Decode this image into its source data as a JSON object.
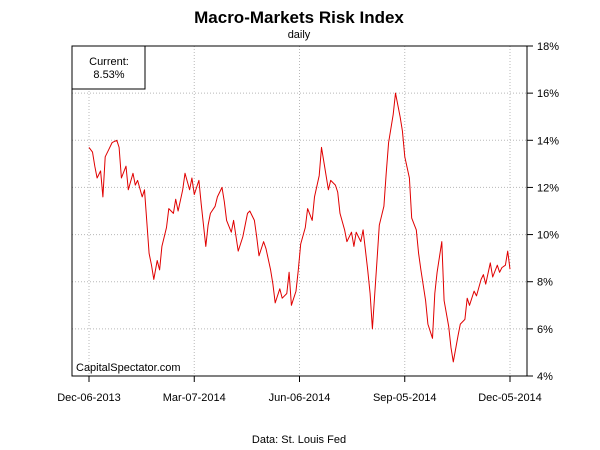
{
  "chart_data": {
    "type": "line",
    "title": "Macro-Markets Risk Index",
    "subtitle": "daily",
    "caption": "Data: St. Louis Fed",
    "watermark": "CapitalSpectator.com",
    "current_label": "Current:",
    "current_value": "8.53%",
    "y_unit": "%",
    "ylim": [
      4,
      18
    ],
    "y_ticks": [
      4,
      6,
      8,
      10,
      12,
      14,
      16,
      18
    ],
    "y_tick_labels": [
      "4%",
      "6%",
      "8%",
      "10%",
      "12%",
      "14%",
      "16%",
      "18%"
    ],
    "x_ticks": [
      "2013-12-06",
      "2014-03-07",
      "2014-06-06",
      "2014-09-05",
      "2014-12-05"
    ],
    "x_tick_labels": [
      "Dec-06-2013",
      "Mar-07-2014",
      "Jun-06-2014",
      "Sep-05-2014",
      "Dec-05-2014"
    ],
    "grid": true,
    "line_color": "#e00000",
    "series": [
      {
        "points": [
          [
            "2013-12-06",
            13.7
          ],
          [
            "2013-12-09",
            13.5
          ],
          [
            "2013-12-11",
            12.9
          ],
          [
            "2013-12-13",
            12.4
          ],
          [
            "2013-12-16",
            12.7
          ],
          [
            "2013-12-18",
            11.6
          ],
          [
            "2013-12-20",
            13.3
          ],
          [
            "2013-12-23",
            13.6
          ],
          [
            "2013-12-26",
            13.9
          ],
          [
            "2013-12-30",
            14.0
          ],
          [
            "2014-01-01",
            13.7
          ],
          [
            "2014-01-03",
            12.4
          ],
          [
            "2014-01-07",
            12.9
          ],
          [
            "2014-01-09",
            11.9
          ],
          [
            "2014-01-13",
            12.6
          ],
          [
            "2014-01-15",
            12.1
          ],
          [
            "2014-01-17",
            12.3
          ],
          [
            "2014-01-21",
            11.6
          ],
          [
            "2014-01-23",
            11.9
          ],
          [
            "2014-01-27",
            9.2
          ],
          [
            "2014-01-29",
            8.7
          ],
          [
            "2014-01-31",
            8.1
          ],
          [
            "2014-02-03",
            8.9
          ],
          [
            "2014-02-05",
            8.5
          ],
          [
            "2014-02-07",
            9.5
          ],
          [
            "2014-02-11",
            10.3
          ],
          [
            "2014-02-13",
            11.1
          ],
          [
            "2014-02-17",
            10.9
          ],
          [
            "2014-02-19",
            11.5
          ],
          [
            "2014-02-21",
            11.0
          ],
          [
            "2014-02-25",
            11.9
          ],
          [
            "2014-02-27",
            12.6
          ],
          [
            "2014-03-03",
            11.9
          ],
          [
            "2014-03-05",
            12.4
          ],
          [
            "2014-03-07",
            11.7
          ],
          [
            "2014-03-11",
            12.3
          ],
          [
            "2014-03-13",
            11.3
          ],
          [
            "2014-03-17",
            9.5
          ],
          [
            "2014-03-19",
            10.4
          ],
          [
            "2014-03-21",
            10.9
          ],
          [
            "2014-03-25",
            11.2
          ],
          [
            "2014-03-27",
            11.6
          ],
          [
            "2014-03-31",
            12.0
          ],
          [
            "2014-04-02",
            11.4
          ],
          [
            "2014-04-04",
            10.6
          ],
          [
            "2014-04-08",
            10.1
          ],
          [
            "2014-04-10",
            10.6
          ],
          [
            "2014-04-14",
            9.3
          ],
          [
            "2014-04-16",
            9.6
          ],
          [
            "2014-04-18",
            9.9
          ],
          [
            "2014-04-22",
            10.9
          ],
          [
            "2014-04-24",
            11.0
          ],
          [
            "2014-04-28",
            10.6
          ],
          [
            "2014-04-30",
            9.9
          ],
          [
            "2014-05-02",
            9.1
          ],
          [
            "2014-05-06",
            9.7
          ],
          [
            "2014-05-08",
            9.4
          ],
          [
            "2014-05-12",
            8.5
          ],
          [
            "2014-05-14",
            7.9
          ],
          [
            "2014-05-16",
            7.1
          ],
          [
            "2014-05-20",
            7.7
          ],
          [
            "2014-05-22",
            7.3
          ],
          [
            "2014-05-26",
            7.5
          ],
          [
            "2014-05-28",
            8.4
          ],
          [
            "2014-05-30",
            7.0
          ],
          [
            "2014-06-03",
            7.6
          ],
          [
            "2014-06-05",
            8.5
          ],
          [
            "2014-06-07",
            9.6
          ],
          [
            "2014-06-11",
            10.3
          ],
          [
            "2014-06-13",
            11.1
          ],
          [
            "2014-06-17",
            10.6
          ],
          [
            "2014-06-19",
            11.6
          ],
          [
            "2014-06-23",
            12.5
          ],
          [
            "2014-06-25",
            13.7
          ],
          [
            "2014-06-27",
            13.1
          ],
          [
            "2014-07-01",
            11.9
          ],
          [
            "2014-07-03",
            12.3
          ],
          [
            "2014-07-07",
            12.1
          ],
          [
            "2014-07-09",
            11.8
          ],
          [
            "2014-07-11",
            10.9
          ],
          [
            "2014-07-15",
            10.2
          ],
          [
            "2014-07-17",
            9.7
          ],
          [
            "2014-07-21",
            10.1
          ],
          [
            "2014-07-23",
            9.5
          ],
          [
            "2014-07-25",
            10.1
          ],
          [
            "2014-07-29",
            9.7
          ],
          [
            "2014-07-31",
            10.2
          ],
          [
            "2014-08-04",
            8.5
          ],
          [
            "2014-08-06",
            7.5
          ],
          [
            "2014-08-08",
            6.0
          ],
          [
            "2014-08-12",
            8.9
          ],
          [
            "2014-08-14",
            10.4
          ],
          [
            "2014-08-18",
            11.2
          ],
          [
            "2014-08-20",
            12.6
          ],
          [
            "2014-08-22",
            13.9
          ],
          [
            "2014-08-26",
            15.1
          ],
          [
            "2014-08-28",
            16.0
          ],
          [
            "2014-09-01",
            15.0
          ],
          [
            "2014-09-03",
            14.4
          ],
          [
            "2014-09-05",
            13.3
          ],
          [
            "2014-09-09",
            12.4
          ],
          [
            "2014-09-11",
            10.7
          ],
          [
            "2014-09-15",
            10.2
          ],
          [
            "2014-09-17",
            9.2
          ],
          [
            "2014-09-19",
            8.5
          ],
          [
            "2014-09-23",
            7.2
          ],
          [
            "2014-09-25",
            6.2
          ],
          [
            "2014-09-29",
            5.6
          ],
          [
            "2014-10-01",
            7.5
          ],
          [
            "2014-10-03",
            8.4
          ],
          [
            "2014-10-07",
            9.7
          ],
          [
            "2014-10-09",
            7.2
          ],
          [
            "2014-10-13",
            6.1
          ],
          [
            "2014-10-15",
            5.2
          ],
          [
            "2014-10-17",
            4.6
          ],
          [
            "2014-10-21",
            5.7
          ],
          [
            "2014-10-23",
            6.2
          ],
          [
            "2014-10-27",
            6.4
          ],
          [
            "2014-10-29",
            7.3
          ],
          [
            "2014-10-31",
            7.0
          ],
          [
            "2014-11-04",
            7.6
          ],
          [
            "2014-11-06",
            7.4
          ],
          [
            "2014-11-10",
            8.1
          ],
          [
            "2014-11-12",
            8.3
          ],
          [
            "2014-11-14",
            7.9
          ],
          [
            "2014-11-18",
            8.8
          ],
          [
            "2014-11-20",
            8.2
          ],
          [
            "2014-11-24",
            8.7
          ],
          [
            "2014-11-26",
            8.4
          ],
          [
            "2014-11-28",
            8.6
          ],
          [
            "2014-12-01",
            8.7
          ],
          [
            "2014-12-03",
            9.3
          ],
          [
            "2014-12-05",
            8.53
          ]
        ]
      }
    ]
  }
}
